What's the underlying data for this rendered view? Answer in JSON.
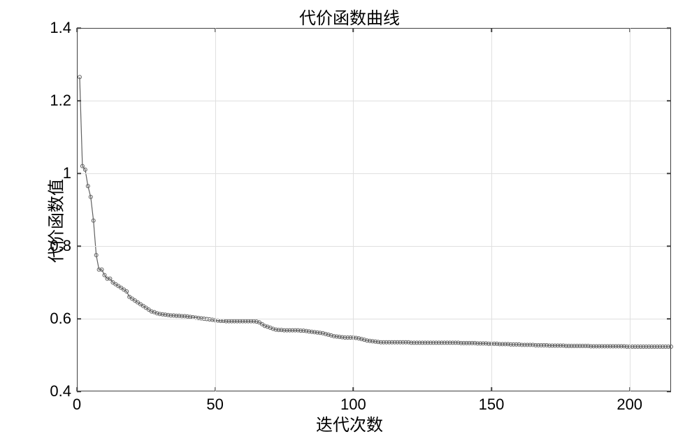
{
  "chart": {
    "type": "line",
    "title": "代价函数曲线",
    "title_fontsize": 24,
    "xlabel": "迭代次数",
    "ylabel": "代价函数值",
    "label_fontsize": 24,
    "tick_fontsize": 22,
    "xlim": [
      0,
      215
    ],
    "ylim": [
      0.4,
      1.4
    ],
    "xticks": [
      0,
      50,
      100,
      150,
      200
    ],
    "yticks": [
      0.4,
      0.6,
      0.8,
      1.0,
      1.2,
      1.4
    ],
    "ytick_labels": [
      "0.4",
      "0.6",
      "0.8",
      "1",
      "1.2",
      "1.4"
    ],
    "xtick_labels": [
      "0",
      "50",
      "100",
      "150",
      "200"
    ],
    "background_color": "#ffffff",
    "grid_color": "#e0e0e0",
    "border_color": "#404040",
    "line_color": "#606060",
    "line_width": 1.2,
    "marker_style": "circle",
    "marker_size": 5,
    "marker_edge_color": "#606060",
    "marker_face_color": "none",
    "marker_edge_width": 1.0,
    "grid": true,
    "series": {
      "x": [
        1,
        2,
        3,
        4,
        5,
        6,
        7,
        8,
        9,
        10,
        11,
        12,
        13,
        14,
        15,
        16,
        17,
        18,
        19,
        20,
        21,
        22,
        23,
        24,
        25,
        26,
        27,
        28,
        29,
        30,
        31,
        32,
        33,
        34,
        35,
        36,
        37,
        38,
        39,
        40,
        41,
        42,
        43,
        44,
        45,
        46,
        47,
        48,
        49,
        50,
        51,
        52,
        53,
        54,
        55,
        56,
        57,
        58,
        59,
        60,
        61,
        62,
        63,
        64,
        65,
        66,
        67,
        68,
        69,
        70,
        71,
        72,
        73,
        74,
        75,
        76,
        77,
        78,
        79,
        80,
        81,
        82,
        83,
        84,
        85,
        86,
        87,
        88,
        89,
        90,
        91,
        92,
        93,
        94,
        95,
        96,
        97,
        98,
        99,
        100,
        101,
        102,
        103,
        104,
        105,
        106,
        107,
        108,
        109,
        110,
        111,
        112,
        113,
        114,
        115,
        116,
        117,
        118,
        119,
        120,
        121,
        122,
        123,
        124,
        125,
        126,
        127,
        128,
        129,
        130,
        131,
        132,
        133,
        134,
        135,
        136,
        137,
        138,
        139,
        140,
        141,
        142,
        143,
        144,
        145,
        146,
        147,
        148,
        149,
        150,
        151,
        152,
        153,
        154,
        155,
        156,
        157,
        158,
        159,
        160,
        161,
        162,
        163,
        164,
        165,
        166,
        167,
        168,
        169,
        170,
        171,
        172,
        173,
        174,
        175,
        176,
        177,
        178,
        179,
        180,
        181,
        182,
        183,
        184,
        185,
        186,
        187,
        188,
        189,
        190,
        191,
        192,
        193,
        194,
        195,
        196,
        197,
        198,
        199,
        200,
        201,
        202,
        203,
        204,
        205,
        206,
        207,
        208,
        209,
        210,
        211,
        212,
        213,
        214,
        215
      ],
      "y": [
        1.265,
        1.02,
        1.01,
        0.965,
        0.935,
        0.87,
        0.775,
        0.735,
        0.735,
        0.72,
        0.71,
        0.71,
        0.7,
        0.695,
        0.69,
        0.685,
        0.68,
        0.675,
        0.66,
        0.655,
        0.65,
        0.645,
        0.64,
        0.635,
        0.63,
        0.625,
        0.62,
        0.618,
        0.615,
        0.613,
        0.612,
        0.611,
        0.61,
        0.609,
        0.609,
        0.608,
        0.608,
        0.607,
        0.607,
        0.606,
        0.605,
        0.604,
        0.603,
        0.602,
        0.601,
        0.6,
        0.599,
        0.598,
        0.597,
        0.596,
        0.595,
        0.594,
        0.594,
        0.593,
        0.593,
        0.593,
        0.593,
        0.593,
        0.593,
        0.593,
        0.593,
        0.593,
        0.593,
        0.593,
        0.592,
        0.59,
        0.585,
        0.58,
        0.578,
        0.575,
        0.572,
        0.57,
        0.569,
        0.569,
        0.568,
        0.568,
        0.568,
        0.568,
        0.568,
        0.568,
        0.567,
        0.567,
        0.566,
        0.565,
        0.564,
        0.563,
        0.562,
        0.561,
        0.56,
        0.558,
        0.556,
        0.554,
        0.552,
        0.551,
        0.55,
        0.549,
        0.548,
        0.548,
        0.548,
        0.548,
        0.547,
        0.546,
        0.544,
        0.542,
        0.54,
        0.539,
        0.538,
        0.537,
        0.536,
        0.535,
        0.535,
        0.535,
        0.535,
        0.535,
        0.535,
        0.535,
        0.535,
        0.535,
        0.535,
        0.535,
        0.534,
        0.534,
        0.534,
        0.534,
        0.534,
        0.534,
        0.534,
        0.534,
        0.534,
        0.534,
        0.534,
        0.534,
        0.534,
        0.534,
        0.534,
        0.534,
        0.534,
        0.534,
        0.533,
        0.533,
        0.533,
        0.533,
        0.533,
        0.533,
        0.532,
        0.532,
        0.532,
        0.532,
        0.531,
        0.531,
        0.531,
        0.531,
        0.53,
        0.53,
        0.53,
        0.53,
        0.529,
        0.529,
        0.529,
        0.529,
        0.528,
        0.528,
        0.528,
        0.528,
        0.528,
        0.527,
        0.527,
        0.527,
        0.527,
        0.527,
        0.526,
        0.526,
        0.526,
        0.526,
        0.526,
        0.526,
        0.525,
        0.525,
        0.525,
        0.525,
        0.525,
        0.525,
        0.525,
        0.525,
        0.525,
        0.524,
        0.524,
        0.524,
        0.524,
        0.524,
        0.524,
        0.524,
        0.524,
        0.524,
        0.524,
        0.524,
        0.524,
        0.524,
        0.523,
        0.523,
        0.523,
        0.523,
        0.523,
        0.523,
        0.523,
        0.523,
        0.523,
        0.523,
        0.523,
        0.523,
        0.523,
        0.523,
        0.523,
        0.523,
        0.523
      ]
    }
  }
}
